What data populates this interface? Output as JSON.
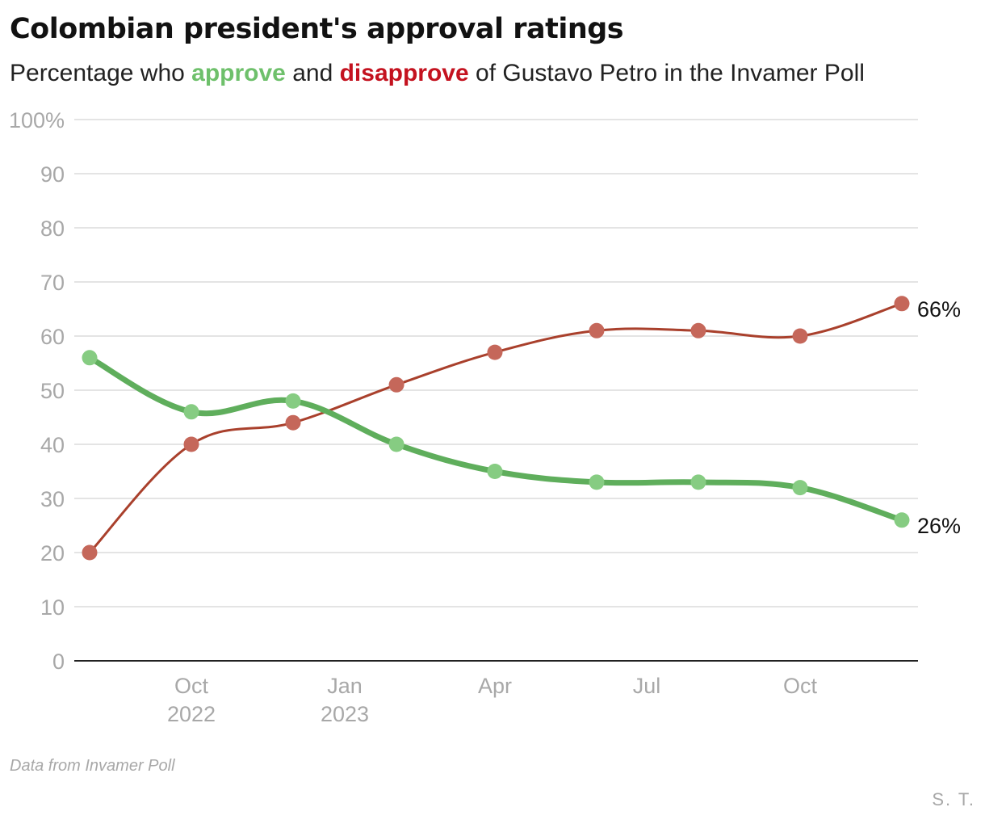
{
  "title": "Colombian president's approval ratings",
  "subtitle": {
    "before": "Percentage who ",
    "approve": "approve",
    "middle": " and ",
    "disapprove": "disapprove",
    "after": " of Gustavo Petro in the Invamer Poll"
  },
  "source": "Data from Invamer Poll",
  "credit": "S. T.",
  "colors": {
    "approve_text": "#6ec06b",
    "disapprove_text": "#c4121f",
    "approve_line": "#5fae5c",
    "approve_marker": "#86cc82",
    "disapprove_line": "#a9402c",
    "disapprove_marker": "#c5675a",
    "grid": "#dcdcdc",
    "tick_text": "#a8a8a8"
  },
  "chart_data": {
    "type": "line",
    "x": [
      "2022-08",
      "2022-10",
      "2022-12",
      "2023-02",
      "2023-04",
      "2023-06",
      "2023-08",
      "2023-10",
      "2023-12"
    ],
    "series": [
      {
        "name": "approve",
        "values": [
          56,
          46,
          48,
          40,
          35,
          33,
          33,
          32,
          26
        ],
        "end_label": "26%"
      },
      {
        "name": "disapprove",
        "values": [
          20,
          40,
          44,
          51,
          57,
          61,
          61,
          60,
          66
        ],
        "end_label": "66%"
      }
    ],
    "ylim": [
      0,
      100
    ],
    "yticks": [
      {
        "value": 0,
        "label": "0"
      },
      {
        "value": 10,
        "label": "10"
      },
      {
        "value": 20,
        "label": "20"
      },
      {
        "value": 30,
        "label": "30"
      },
      {
        "value": 40,
        "label": "40"
      },
      {
        "value": 50,
        "label": "50"
      },
      {
        "value": 60,
        "label": "60"
      },
      {
        "value": 70,
        "label": "70"
      },
      {
        "value": 80,
        "label": "80"
      },
      {
        "value": 90,
        "label": "90"
      },
      {
        "value": 100,
        "label": "100%"
      }
    ],
    "xticks": [
      {
        "date": "2022-10",
        "label": "Oct",
        "year": "2022"
      },
      {
        "date": "2023-01",
        "label": "Jan",
        "year": "2023"
      },
      {
        "date": "2023-04",
        "label": "Apr",
        "year": ""
      },
      {
        "date": "2023-07",
        "label": "Jul",
        "year": ""
      },
      {
        "date": "2023-10",
        "label": "Oct",
        "year": ""
      }
    ],
    "grid": true,
    "legend": "in subtitle"
  }
}
